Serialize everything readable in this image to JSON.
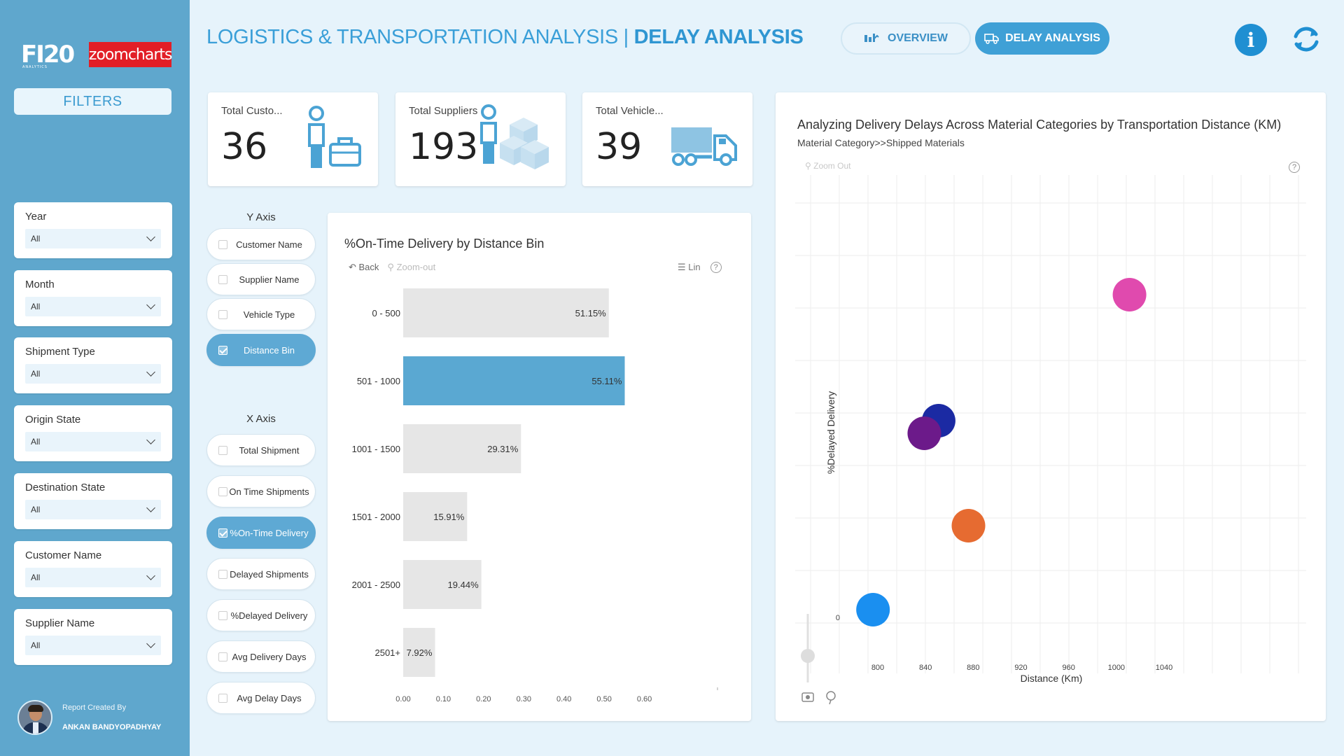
{
  "header": {
    "title_main": "LOGISTICS & TRANSPORTATION ANALYSIS | ",
    "title_bold": "DELAY ANALYSIS",
    "nav_overview": "OVERVIEW",
    "nav_delay": "DELAY ANALYSIS"
  },
  "sidebar": {
    "logo_fi20": "FI20",
    "logo_fi20_sub": "ANALYTICS",
    "logo_zoom": "zoomcharts",
    "filters_label": "FILTERS",
    "slicers": [
      {
        "label": "Year",
        "value": "All"
      },
      {
        "label": "Month",
        "value": "All"
      },
      {
        "label": "Shipment Type",
        "value": "All"
      },
      {
        "label": "Origin State",
        "value": "All"
      },
      {
        "label": "Destination State",
        "value": "All"
      },
      {
        "label": "Customer Name",
        "value": "All"
      },
      {
        "label": "Supplier Name",
        "value": "All"
      }
    ],
    "creator_caption": "Report Created By",
    "creator_name": "ANKAN BANDYOPADHYAY"
  },
  "kpis": [
    {
      "label": "Total Custo...",
      "value": "36"
    },
    {
      "label": "Total Suppliers",
      "value": "193"
    },
    {
      "label": "Total Vehicle...",
      "value": "39"
    }
  ],
  "axis_selector": {
    "y_title": "Y Axis",
    "y_options": [
      {
        "label": "Customer Name",
        "checked": false
      },
      {
        "label": "Supplier Name",
        "checked": false
      },
      {
        "label": "Vehicle Type",
        "checked": false
      },
      {
        "label": "Distance Bin",
        "checked": true
      }
    ],
    "x_title": "X Axis",
    "x_options": [
      {
        "label": "Total Shipment",
        "checked": false
      },
      {
        "label": "On Time Shipments",
        "checked": false
      },
      {
        "label": "%On-Time Delivery",
        "checked": true
      },
      {
        "label": "Delayed Shipments",
        "checked": false
      },
      {
        "label": "%Delayed Delivery",
        "checked": false
      },
      {
        "label": "Avg Delivery Days",
        "checked": false
      },
      {
        "label": "Avg Delay Days",
        "checked": false
      }
    ]
  },
  "bar_chart": {
    "title": "%On-Time Delivery by Distance Bin",
    "back_label": "Back",
    "zoom_label": "Zoom-out",
    "lin_label": "Lin"
  },
  "scatter_chart": {
    "title": "Analyzing Delivery Delays Across Material Categories by Transportation Distance (KM)",
    "subtitle": "Material Category>>Shipped Materials",
    "zoom_label": "Zoom Out"
  },
  "chart_data": [
    {
      "type": "bar",
      "orientation": "horizontal",
      "title": "%On-Time Delivery by Distance Bin",
      "categories": [
        "0 - 500",
        "501 - 1000",
        "1001 - 1500",
        "1501 - 2000",
        "2001 - 2500",
        "2501+"
      ],
      "values": [
        0.5115,
        0.5511,
        0.2931,
        0.1591,
        0.1944,
        0.0792
      ],
      "data_labels": [
        "51.15%",
        "55.11%",
        "29.31%",
        "15.91%",
        "19.44%",
        "7.92%"
      ],
      "highlighted_index": 1,
      "xlim": [
        0,
        0.7
      ],
      "x_ticks": [
        "0.00",
        "0.10",
        "0.20",
        "0.30",
        "0.40",
        "0.50",
        "0.60"
      ],
      "colors": {
        "default": "#e6e6e6",
        "highlight": "#5aa8d2"
      }
    },
    {
      "type": "scatter",
      "title": "Analyzing Delivery Delays Across Material Categories by Transportation Distance (KM)",
      "xlabel": "Distance (Km)",
      "ylabel": "%Delayed Delivery",
      "xlim": [
        760,
        1080
      ],
      "x_ticks": [
        800,
        840,
        880,
        920,
        960,
        1000,
        1040
      ],
      "y_ticks": [
        "0"
      ],
      "grid": true,
      "points": [
        {
          "x": 1011,
          "y": 0.75,
          "color": "#e04aae"
        },
        {
          "x": 851,
          "y": 0.45,
          "color": "#1b2aa3"
        },
        {
          "x": 839,
          "y": 0.42,
          "color": "#6c1a8a"
        },
        {
          "x": 876,
          "y": 0.2,
          "color": "#e66b31"
        },
        {
          "x": 796,
          "y": 0.0,
          "color": "#1a8ff0"
        }
      ]
    }
  ]
}
